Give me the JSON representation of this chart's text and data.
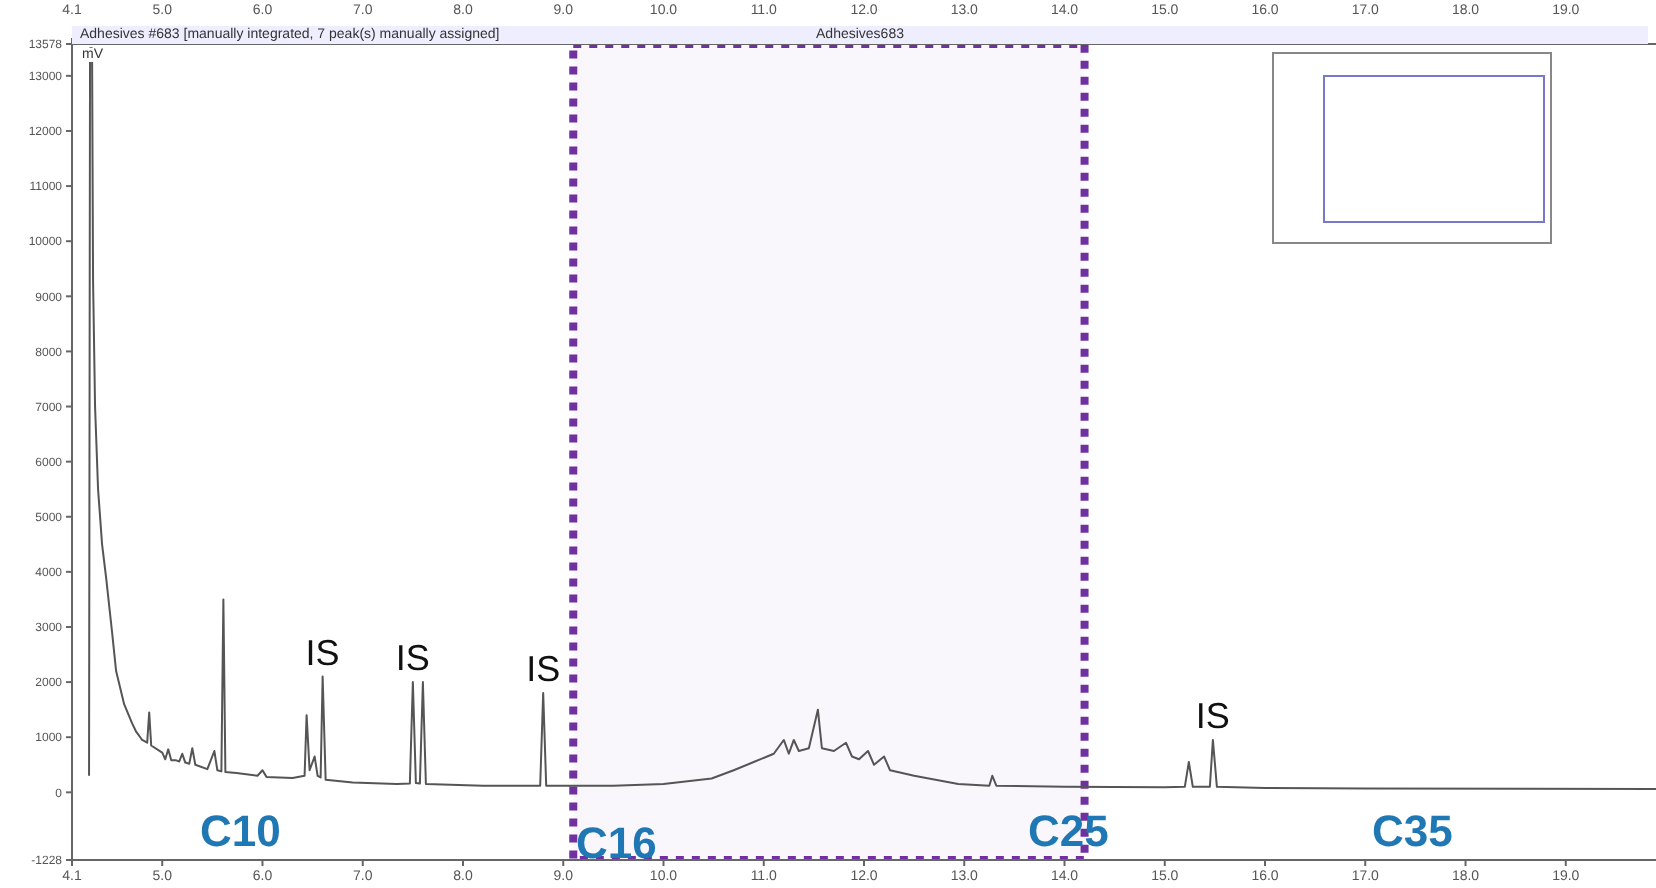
{
  "chart_data": {
    "type": "line",
    "title": "Adhesives #683 [manually integrated, 7 peak(s) manually assigned]",
    "subtitle": "Adhesives683",
    "ylabel": "mV",
    "x": [
      4.27,
      4.28,
      4.3,
      4.31,
      4.33,
      4.36,
      4.4,
      4.44,
      4.5,
      4.54,
      4.62,
      4.7,
      4.74,
      4.8,
      4.85,
      4.87,
      4.89,
      5.0,
      5.03,
      5.06,
      5.09,
      5.14,
      5.17,
      5.2,
      5.23,
      5.27,
      5.3,
      5.33,
      5.45,
      5.52,
      5.55,
      5.59,
      5.61,
      5.63,
      5.74,
      5.95,
      6.0,
      6.04,
      6.3,
      6.42,
      6.44,
      6.47,
      6.52,
      6.55,
      6.58,
      6.6,
      6.63,
      6.9,
      7.34,
      7.47,
      7.5,
      7.53,
      7.57,
      7.6,
      7.63,
      8.2,
      8.77,
      8.8,
      8.83,
      9.5,
      10.0,
      10.48,
      10.7,
      10.9,
      11.1,
      11.2,
      11.25,
      11.3,
      11.35,
      11.45,
      11.54,
      11.58,
      11.7,
      11.82,
      11.88,
      11.95,
      12.04,
      12.1,
      12.2,
      12.26,
      12.5,
      12.94,
      13.25,
      13.28,
      13.32,
      14.0,
      15.0,
      15.2,
      15.24,
      15.28,
      15.45,
      15.48,
      15.52,
      16.0,
      17.0,
      19.9
    ],
    "values": [
      300,
      13500,
      13500,
      9300,
      7000,
      5500,
      4500,
      3900,
      2900,
      2200,
      1600,
      1250,
      1100,
      950,
      900,
      1450,
      850,
      720,
      600,
      780,
      580,
      580,
      560,
      700,
      540,
      520,
      800,
      500,
      420,
      750,
      400,
      380,
      3500,
      370,
      350,
      300,
      400,
      280,
      260,
      300,
      1400,
      400,
      650,
      300,
      270,
      2100,
      230,
      180,
      150,
      160,
      2000,
      170,
      160,
      2000,
      150,
      120,
      120,
      1800,
      120,
      120,
      150,
      250,
      400,
      550,
      700,
      950,
      700,
      950,
      750,
      800,
      1500,
      800,
      750,
      900,
      650,
      600,
      750,
      500,
      650,
      400,
      300,
      150,
      120,
      300,
      120,
      100,
      90,
      100,
      550,
      100,
      100,
      950,
      100,
      80,
      70,
      60
    ],
    "color": "#555555",
    "xlim": [
      4.1,
      19.9
    ],
    "xticks": [
      {
        "value": 4.1,
        "label": "4.1"
      },
      {
        "value": 5,
        "label": "5.0"
      },
      {
        "value": 6,
        "label": "6.0"
      },
      {
        "value": 7,
        "label": "7.0"
      },
      {
        "value": 8,
        "label": "8.0"
      },
      {
        "value": 9,
        "label": "9.0"
      },
      {
        "value": 10,
        "label": "10.0"
      },
      {
        "value": 11,
        "label": "11.0"
      },
      {
        "value": 12,
        "label": "12.0"
      },
      {
        "value": 13,
        "label": "13.0"
      },
      {
        "value": 14,
        "label": "14.0"
      },
      {
        "value": 15,
        "label": "15.0"
      },
      {
        "value": 16,
        "label": "16.0"
      },
      {
        "value": 17,
        "label": "17.0"
      },
      {
        "value": 18,
        "label": "18.0"
      },
      {
        "value": 19,
        "label": "19.0"
      }
    ],
    "x2lim": [
      4.1,
      19.9
    ],
    "x2ticks": [
      {
        "value": 4.1,
        "label": "4.1"
      },
      {
        "value": 5,
        "label": "5.0"
      },
      {
        "value": 6,
        "label": "6.0"
      },
      {
        "value": 7,
        "label": "7.0"
      },
      {
        "value": 8,
        "label": "8.0"
      },
      {
        "value": 9,
        "label": "9.0"
      },
      {
        "value": 10,
        "label": "10.0"
      },
      {
        "value": 11,
        "label": "11.0"
      },
      {
        "value": 12,
        "label": "12.0"
      },
      {
        "value": 13,
        "label": "13.0"
      },
      {
        "value": 14,
        "label": "14.0"
      },
      {
        "value": 15,
        "label": "15.0"
      },
      {
        "value": 16,
        "label": "16.0"
      },
      {
        "value": 17,
        "label": "17.0"
      },
      {
        "value": 18,
        "label": "18.0"
      },
      {
        "value": 19,
        "label": "19.0"
      }
    ],
    "ylim": [
      -1228,
      13578
    ],
    "yticks": [
      -1228,
      0,
      1000,
      2000,
      3000,
      4000,
      5000,
      6000,
      7000,
      8000,
      9000,
      10000,
      11000,
      12000,
      13000,
      13578
    ],
    "bands": [
      {
        "axis": "x",
        "from": 9.1,
        "to": 14.2,
        "color": "#7030a0"
      }
    ],
    "annotations": [
      {
        "text": "IS",
        "x": 6.6,
        "y": 2100
      },
      {
        "text": "IS",
        "x": 7.5,
        "y": 2000
      },
      {
        "text": "IS",
        "x": 8.8,
        "y": 1800
      },
      {
        "text": "IS",
        "x": 15.48,
        "y": 950
      },
      "C10",
      "C16",
      "C25",
      "C35"
    ],
    "grid": false,
    "legend": false,
    "marker": "none",
    "line_style": "solid"
  }
}
